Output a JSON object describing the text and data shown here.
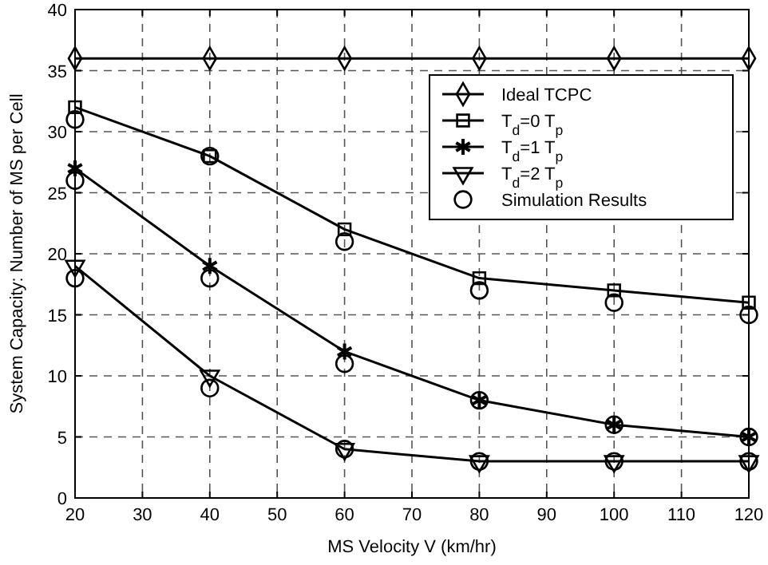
{
  "chart_data": {
    "type": "line",
    "xlabel": "MS Velocity V (km/hr)",
    "ylabel": "System Capacity: Number of MS per Cell",
    "x": [
      20,
      40,
      60,
      80,
      100,
      120
    ],
    "series": [
      {
        "name": "Ideal TCPC",
        "color": "#000000",
        "marker": "diamond",
        "values": [
          36,
          36,
          36,
          36,
          36,
          36
        ]
      },
      {
        "name": "T$_{d}$=0 T$_{p}$",
        "color": "#000000",
        "marker": "square",
        "values": [
          32,
          28,
          22,
          18,
          17,
          16
        ]
      },
      {
        "name": "T$_{d}$=1 T$_{p}$",
        "color": "#000000",
        "marker": "cross",
        "values": [
          27,
          19,
          12,
          8,
          6,
          5
        ]
      },
      {
        "name": "T$_{d}$=2 T$_{p}$",
        "color": "#000000",
        "marker": "triangle",
        "values": [
          19,
          10,
          4,
          3,
          3,
          3
        ]
      },
      {
        "name": "Simulation Results",
        "type": "scatter",
        "color": "#000000",
        "marker": "circle",
        "x": [
          20,
          20,
          20,
          40,
          40,
          40,
          60,
          60,
          60,
          80,
          80,
          80,
          100,
          100,
          100,
          120,
          120,
          120
        ],
        "values": [
          31,
          26,
          18,
          28,
          18,
          9,
          21,
          11,
          4,
          17,
          8,
          3,
          16,
          6,
          3,
          15,
          5,
          3
        ]
      }
    ],
    "xlim": [
      20,
      120
    ],
    "xticks": [
      20,
      30,
      40,
      50,
      60,
      70,
      80,
      90,
      100,
      110,
      120
    ],
    "ylim": [
      0,
      40
    ],
    "yticks": [
      0,
      5,
      10,
      15,
      20,
      25,
      30,
      35,
      40
    ],
    "grid": true,
    "legend": "top right",
    "line_style": "solid"
  }
}
